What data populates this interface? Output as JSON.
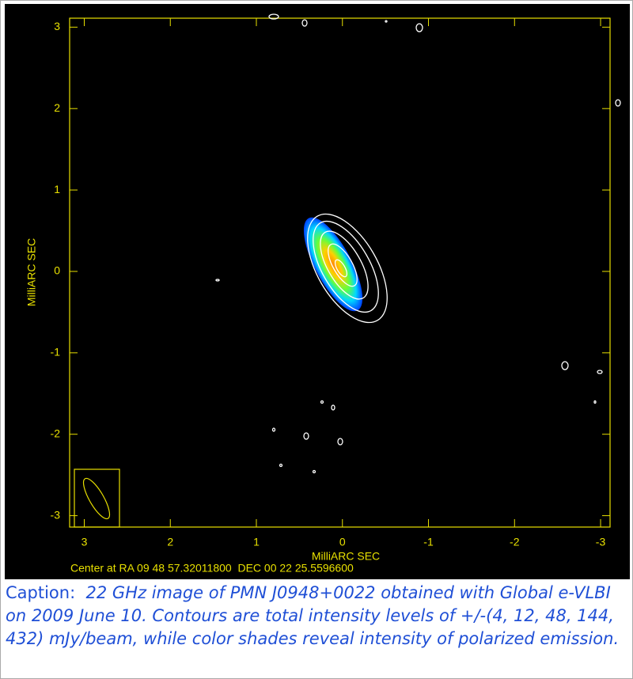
{
  "chart_data": {
    "type": "contour-map",
    "x_label": "MilliARC SEC",
    "y_label": "MilliARC SEC",
    "footer": "Center at RA 09 48 57.32011800  DEC 00 22 25.5596600",
    "xlim": [
      3.17,
      -3.11
    ],
    "ylim": [
      -3.14,
      3.11
    ],
    "xticks": [
      3,
      2,
      1,
      0,
      -1,
      -2,
      -3
    ],
    "yticks": [
      3,
      2,
      1,
      0,
      -1,
      -2,
      -3
    ]
  },
  "caption": {
    "label": "Caption:",
    "text": "22 GHz image of PMN J0948+0022 obtained with Global e-VLBI on 2009 June 10. Contours are total intensity levels of +/-(4, 12, 48, 144, 432) mJy/beam, while color shades reveal intensity of polarized emission."
  }
}
